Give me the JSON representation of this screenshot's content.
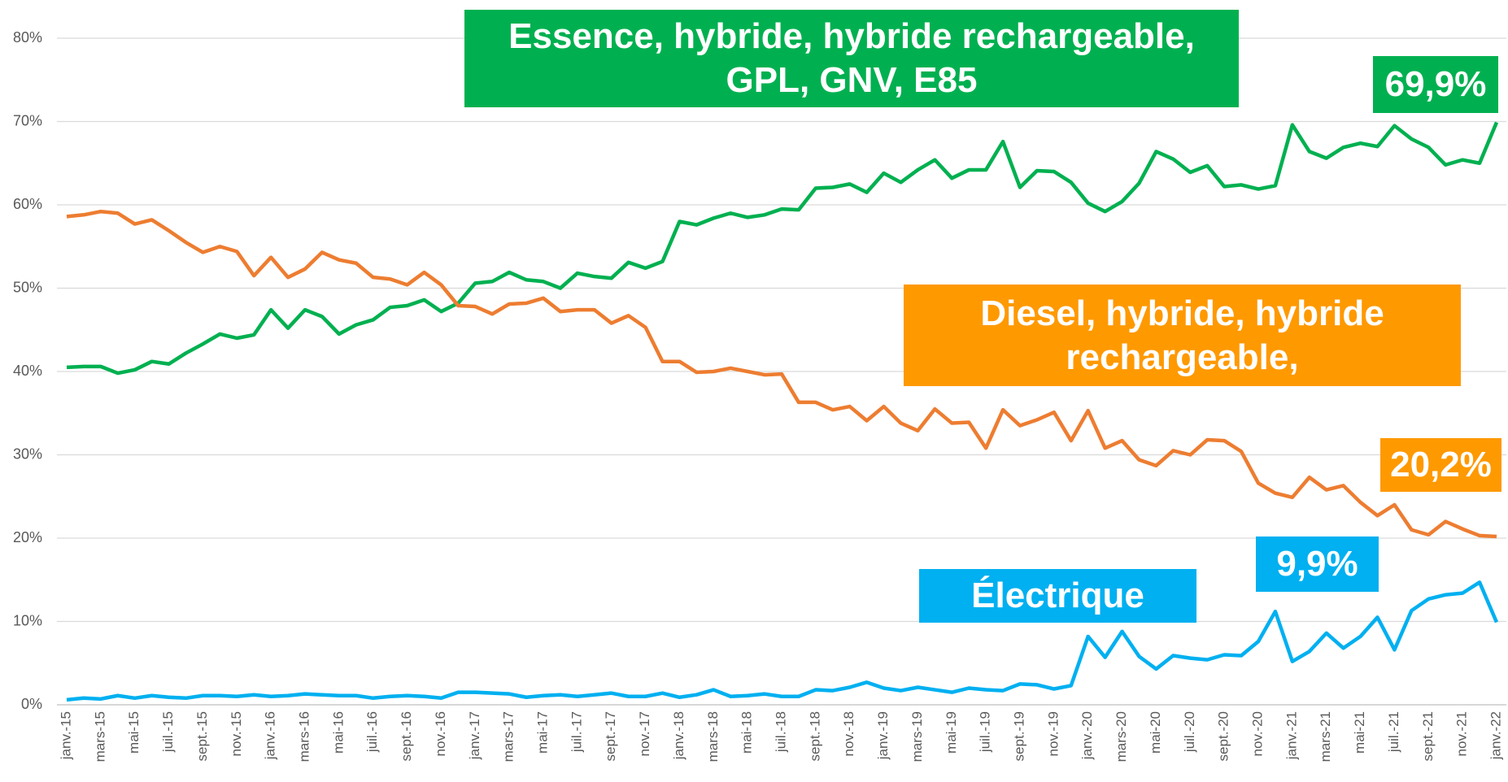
{
  "chart_data": {
    "type": "line",
    "categories": [
      "janv.-15",
      null,
      "mars-15",
      null,
      "mai-15",
      null,
      "juil.-15",
      null,
      "sept.-15",
      null,
      "nov.-15",
      null,
      "janv.-16",
      null,
      "mars-16",
      null,
      "mai-16",
      null,
      "juil.-16",
      null,
      "sept.-16",
      null,
      "nov.-16",
      null,
      "janv.-17",
      null,
      "mars-17",
      null,
      "mai-17",
      null,
      "juil.-17",
      null,
      "sept.-17",
      null,
      "nov.-17",
      null,
      "janv.-18",
      null,
      "mars-18",
      null,
      "mai-18",
      null,
      "juil.-18",
      null,
      "sept.-18",
      null,
      "nov.-18",
      null,
      "janv.-19",
      null,
      "mars-19",
      null,
      "mai-19",
      null,
      "juil.-19",
      null,
      "sept.-19",
      null,
      "nov.-19",
      null,
      "janv.-20",
      null,
      "mars-20",
      null,
      "mai-20",
      null,
      "juil.-20",
      null,
      "sept.-20",
      null,
      "nov.-20",
      null,
      "janv.-21",
      null,
      "mars-21",
      null,
      "mai-21",
      null,
      "juil.-21",
      null,
      "sept.-21",
      null,
      "nov.-21",
      null,
      "janv.-22"
    ],
    "series": [
      {
        "name": "Essence, hybride, hybride rechargeable, GPL, GNV, E85",
        "color": "#00b050",
        "box_color": "#00b050",
        "end_label": "69,9%",
        "values": [
          40.5,
          40.6,
          40.6,
          39.8,
          40.2,
          41.2,
          40.9,
          42.2,
          43.3,
          44.5,
          44.0,
          44.4,
          47.4,
          45.2,
          47.4,
          46.6,
          44.5,
          45.6,
          46.2,
          47.7,
          47.9,
          48.6,
          47.2,
          48.2,
          50.6,
          50.8,
          51.9,
          51.0,
          50.8,
          50.0,
          51.8,
          51.4,
          51.2,
          53.1,
          52.4,
          53.2,
          58.0,
          57.6,
          58.4,
          59.0,
          58.5,
          58.8,
          59.5,
          59.4,
          62.0,
          62.1,
          62.5,
          61.5,
          63.8,
          62.7,
          64.2,
          65.4,
          63.2,
          64.2,
          64.2,
          67.6,
          62.1,
          64.1,
          64.0,
          62.7,
          60.2,
          59.2,
          60.4,
          62.6,
          66.4,
          65.5,
          63.9,
          64.7,
          62.2,
          62.4,
          61.9,
          62.3,
          69.6,
          66.4,
          65.6,
          66.9,
          67.4,
          67.0,
          69.5,
          67.9,
          66.9,
          64.8,
          65.4,
          65.0,
          69.9
        ]
      },
      {
        "name": "Diesel, hybride, hybride rechargeable,",
        "color": "#ed7d31",
        "box_color": "#ff9900",
        "end_label": "20,2%",
        "values": [
          58.6,
          58.8,
          59.2,
          59.0,
          57.7,
          58.2,
          56.9,
          55.5,
          54.3,
          55.0,
          54.4,
          51.5,
          53.7,
          51.3,
          52.3,
          54.3,
          53.4,
          53.0,
          51.3,
          51.1,
          50.4,
          51.9,
          50.4,
          47.9,
          47.8,
          46.9,
          48.1,
          48.2,
          48.8,
          47.2,
          47.4,
          47.4,
          45.8,
          46.7,
          45.3,
          41.2,
          41.2,
          39.9,
          40.0,
          40.4,
          40.0,
          39.6,
          39.7,
          36.3,
          36.3,
          35.4,
          35.8,
          34.1,
          35.8,
          33.8,
          32.9,
          35.5,
          33.8,
          33.9,
          30.8,
          35.4,
          33.5,
          34.2,
          35.1,
          31.7,
          35.3,
          30.8,
          31.7,
          29.4,
          28.7,
          30.5,
          30.0,
          31.8,
          31.7,
          30.4,
          26.6,
          25.4,
          24.9,
          27.3,
          25.8,
          26.3,
          24.3,
          22.7,
          24.0,
          21.0,
          20.4,
          22.0,
          21.1,
          20.3,
          20.2
        ]
      },
      {
        "name": "Électrique",
        "color": "#00b0f0",
        "box_color": "#00b0f0",
        "end_label": "9,9%",
        "values": [
          0.6,
          0.8,
          0.7,
          1.1,
          0.8,
          1.1,
          0.9,
          0.8,
          1.1,
          1.1,
          1.0,
          1.2,
          1.0,
          1.1,
          1.3,
          1.2,
          1.1,
          1.1,
          0.8,
          1.0,
          1.1,
          1.0,
          0.8,
          1.5,
          1.5,
          1.4,
          1.3,
          0.9,
          1.1,
          1.2,
          1.0,
          1.2,
          1.4,
          1.0,
          1.0,
          1.4,
          0.9,
          1.2,
          1.8,
          1.0,
          1.1,
          1.3,
          1.0,
          1.0,
          1.8,
          1.7,
          2.1,
          2.7,
          2.0,
          1.7,
          2.1,
          1.8,
          1.5,
          2.0,
          1.8,
          1.7,
          2.5,
          2.4,
          1.9,
          2.3,
          8.2,
          5.7,
          8.8,
          5.8,
          4.3,
          5.9,
          5.6,
          5.4,
          6.0,
          5.9,
          7.6,
          11.2,
          5.2,
          6.4,
          8.6,
          6.8,
          8.2,
          10.5,
          6.6,
          11.3,
          12.7,
          13.2,
          13.4,
          14.7,
          9.9
        ]
      }
    ],
    "ylim": [
      0,
      80
    ],
    "yticks": [
      {
        "value": 0,
        "label": "0%"
      },
      {
        "value": 10,
        "label": "10%"
      },
      {
        "value": 20,
        "label": "20%"
      },
      {
        "value": 30,
        "label": "30%"
      },
      {
        "value": 40,
        "label": "40%"
      },
      {
        "value": 50,
        "label": "50%"
      },
      {
        "value": 60,
        "label": "60%"
      },
      {
        "value": 70,
        "label": "70%"
      },
      {
        "value": 80,
        "label": "80%"
      }
    ],
    "grid": true
  }
}
